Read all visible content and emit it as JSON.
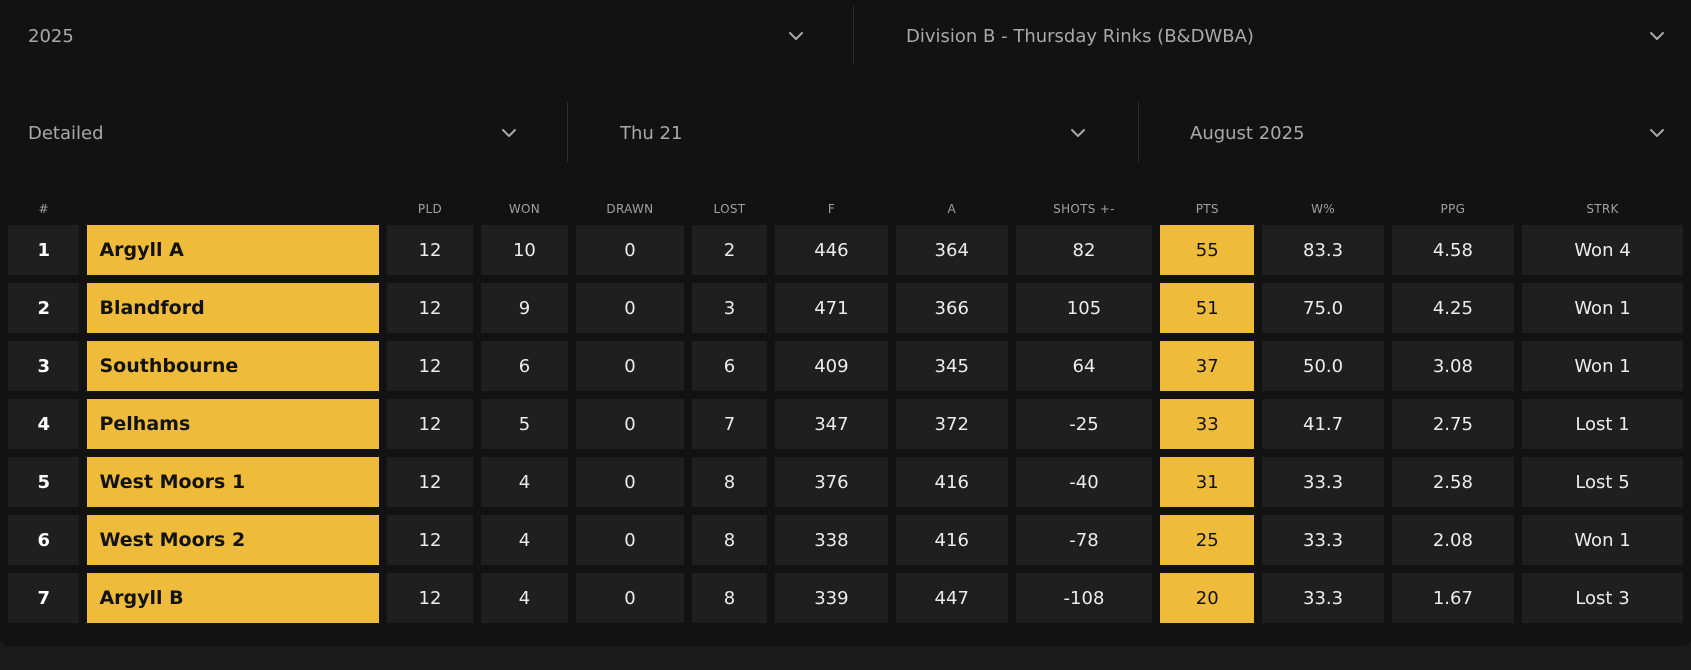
{
  "filters": {
    "season": "2025",
    "division": "Division B - Thursday Rinks (B&DWBA)",
    "view": "Detailed",
    "date": "Thu 21",
    "month": "August 2025"
  },
  "icons": {
    "dropdown": "chevron-down-icon"
  },
  "colors": {
    "accent": "#eebc3a",
    "background": "#121212",
    "cell": "#1f1f1f"
  },
  "table": {
    "headers": [
      "#",
      "",
      "PLD",
      "WON",
      "DRAWN",
      "LOST",
      "F",
      "A",
      "SHOTS +-",
      "PTS",
      "W%",
      "PPG",
      "STRK"
    ],
    "rows": [
      {
        "pos": "1",
        "team": "Argyll A",
        "pld": "12",
        "won": "10",
        "drawn": "0",
        "lost": "2",
        "f": "446",
        "a": "364",
        "shots": "82",
        "pts": "55",
        "wpct": "83.3",
        "ppg": "4.58",
        "strk": "Won 4"
      },
      {
        "pos": "2",
        "team": "Blandford",
        "pld": "12",
        "won": "9",
        "drawn": "0",
        "lost": "3",
        "f": "471",
        "a": "366",
        "shots": "105",
        "pts": "51",
        "wpct": "75.0",
        "ppg": "4.25",
        "strk": "Won 1"
      },
      {
        "pos": "3",
        "team": "Southbourne",
        "pld": "12",
        "won": "6",
        "drawn": "0",
        "lost": "6",
        "f": "409",
        "a": "345",
        "shots": "64",
        "pts": "37",
        "wpct": "50.0",
        "ppg": "3.08",
        "strk": "Won 1"
      },
      {
        "pos": "4",
        "team": "Pelhams",
        "pld": "12",
        "won": "5",
        "drawn": "0",
        "lost": "7",
        "f": "347",
        "a": "372",
        "shots": "-25",
        "pts": "33",
        "wpct": "41.7",
        "ppg": "2.75",
        "strk": "Lost 1"
      },
      {
        "pos": "5",
        "team": "West Moors 1",
        "pld": "12",
        "won": "4",
        "drawn": "0",
        "lost": "8",
        "f": "376",
        "a": "416",
        "shots": "-40",
        "pts": "31",
        "wpct": "33.3",
        "ppg": "2.58",
        "strk": "Lost 5"
      },
      {
        "pos": "6",
        "team": "West Moors 2",
        "pld": "12",
        "won": "4",
        "drawn": "0",
        "lost": "8",
        "f": "338",
        "a": "416",
        "shots": "-78",
        "pts": "25",
        "wpct": "33.3",
        "ppg": "2.08",
        "strk": "Won 1"
      },
      {
        "pos": "7",
        "team": "Argyll B",
        "pld": "12",
        "won": "4",
        "drawn": "0",
        "lost": "8",
        "f": "339",
        "a": "447",
        "shots": "-108",
        "pts": "20",
        "wpct": "33.3",
        "ppg": "1.67",
        "strk": "Lost 3"
      }
    ]
  }
}
